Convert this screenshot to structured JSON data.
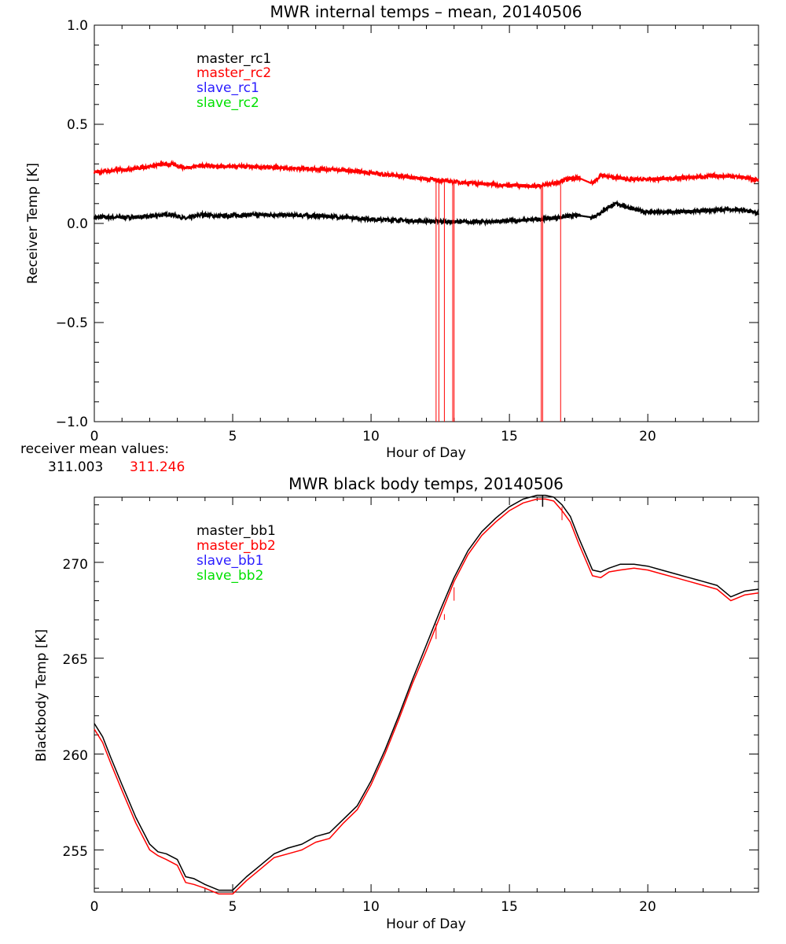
{
  "colors": {
    "black": "#000000",
    "red": "#ff0000",
    "blue": "#2a1cff",
    "green": "#00e000"
  },
  "chart_data": [
    {
      "type": "line",
      "title": "MWR internal temps – mean, 20140506",
      "xlabel": "Hour of Day",
      "ylabel": "Receiver Temp [K]",
      "xlim": [
        0,
        24
      ],
      "ylim": [
        -1.0,
        1.0
      ],
      "x_ticks": [
        0,
        5,
        10,
        15,
        20
      ],
      "x_tick_labels": [
        "0",
        "5",
        "10",
        "15",
        "20"
      ],
      "y_ticks": [
        -1.0,
        -0.5,
        0.0,
        0.5,
        1.0
      ],
      "y_tick_labels": [
        "−1.0",
        "−0.5",
        "0.0",
        "0.5",
        "1.0"
      ],
      "legend_position": "top-left",
      "series": [
        {
          "name": "master_rc1",
          "color": "#000000",
          "x": [
            0,
            0.5,
            1,
            1.5,
            2,
            2.5,
            2.7,
            3,
            3.3,
            3.6,
            3.9,
            4.2,
            4.5,
            5,
            5.5,
            6,
            6.5,
            7,
            7.5,
            8,
            8.5,
            9,
            9.5,
            10,
            10.5,
            11,
            11.5,
            12,
            12.5,
            13,
            13.5,
            14,
            14.5,
            15,
            15.5,
            16,
            16.5,
            17,
            17.5,
            18,
            18.3,
            18.6,
            18.9,
            19.2,
            19.5,
            20,
            20.5,
            21,
            21.5,
            22,
            22.5,
            23,
            23.5,
            24
          ],
          "y": [
            0.03,
            0.032,
            0.03,
            0.032,
            0.035,
            0.043,
            0.047,
            0.038,
            0.024,
            0.034,
            0.045,
            0.04,
            0.036,
            0.04,
            0.042,
            0.044,
            0.043,
            0.042,
            0.04,
            0.038,
            0.035,
            0.03,
            0.026,
            0.022,
            0.018,
            0.016,
            0.013,
            0.011,
            0.01,
            0.008,
            0.007,
            0.008,
            0.01,
            0.012,
            0.016,
            0.02,
            0.026,
            0.034,
            0.04,
            0.03,
            0.055,
            0.085,
            0.1,
            0.085,
            0.07,
            0.058,
            0.055,
            0.058,
            0.06,
            0.063,
            0.068,
            0.072,
            0.065,
            0.05
          ]
        },
        {
          "name": "master_rc2",
          "color": "#ff0000",
          "x": [
            0,
            0.5,
            1,
            1.5,
            2,
            2.5,
            2.7,
            3,
            3.3,
            3.6,
            3.9,
            4.2,
            4.5,
            5,
            5.5,
            6,
            6.5,
            7,
            7.5,
            8,
            8.5,
            9,
            9.5,
            10,
            10.5,
            11,
            11.5,
            12,
            12.5,
            13,
            13.5,
            14,
            14.5,
            15,
            15.5,
            16,
            16.5,
            17,
            17.5,
            18,
            18.3,
            18.6,
            18.9,
            19.2,
            19.5,
            20,
            20.5,
            21,
            21.5,
            22,
            22.5,
            23,
            23.5,
            24
          ],
          "y": [
            0.26,
            0.265,
            0.27,
            0.278,
            0.288,
            0.298,
            0.3,
            0.292,
            0.28,
            0.288,
            0.292,
            0.29,
            0.287,
            0.288,
            0.286,
            0.283,
            0.281,
            0.279,
            0.277,
            0.275,
            0.273,
            0.268,
            0.262,
            0.255,
            0.247,
            0.24,
            0.232,
            0.224,
            0.218,
            0.21,
            0.205,
            0.2,
            0.196,
            0.192,
            0.19,
            0.188,
            0.2,
            0.22,
            0.23,
            0.2,
            0.245,
            0.235,
            0.23,
            0.225,
            0.222,
            0.222,
            0.224,
            0.228,
            0.232,
            0.236,
            0.24,
            0.238,
            0.232,
            0.218
          ],
          "dropouts_x": [
            12.35,
            12.45,
            12.65,
            12.95,
            13.0,
            16.15,
            16.2,
            16.85
          ],
          "dropouts_to": -1.0
        },
        {
          "name": "slave_rc1",
          "color": "#2a1cff",
          "x": [],
          "y": []
        },
        {
          "name": "slave_rc2",
          "color": "#00e000",
          "x": [],
          "y": []
        }
      ],
      "annotation": {
        "label": "receiver mean values:",
        "values": [
          "311.003",
          "311.246"
        ],
        "value_colors": [
          "#000000",
          "#ff0000"
        ]
      }
    },
    {
      "type": "line",
      "title": "MWR black body temps, 20140506",
      "xlabel": "Hour of Day",
      "ylabel": "Blackbody Temp [K]",
      "xlim": [
        0,
        24
      ],
      "ylim": [
        252.8,
        273.4
      ],
      "x_ticks": [
        0,
        5,
        10,
        15,
        20
      ],
      "x_tick_labels": [
        "0",
        "5",
        "10",
        "15",
        "20"
      ],
      "y_ticks": [
        255,
        260,
        265,
        270
      ],
      "y_tick_labels": [
        "255",
        "260",
        "265",
        "270"
      ],
      "legend_position": "top-left",
      "series": [
        {
          "name": "master_bb1",
          "color": "#000000",
          "x": [
            0,
            0.3,
            0.6,
            1,
            1.5,
            2,
            2.3,
            2.6,
            3,
            3.3,
            3.6,
            4,
            4.5,
            5,
            5.5,
            6,
            6.5,
            7,
            7.5,
            8,
            8.5,
            9,
            9.5,
            10,
            10.5,
            11,
            11.5,
            12,
            12.5,
            13,
            13.5,
            14,
            14.5,
            15,
            15.5,
            16,
            16.3,
            16.6,
            16.9,
            17.2,
            17.5,
            18,
            18.3,
            18.6,
            19,
            19.5,
            20,
            20.5,
            21,
            21.5,
            22,
            22.5,
            23,
            23.5,
            24
          ],
          "y": [
            261.6,
            260.9,
            259.8,
            258.4,
            256.7,
            255.3,
            254.9,
            254.8,
            254.5,
            253.6,
            253.5,
            253.2,
            252.9,
            252.9,
            253.6,
            254.2,
            254.8,
            255.1,
            255.3,
            255.7,
            255.9,
            256.6,
            257.3,
            258.6,
            260.2,
            262.0,
            263.9,
            265.7,
            267.5,
            269.2,
            270.6,
            271.6,
            272.3,
            272.9,
            273.3,
            273.5,
            273.5,
            273.4,
            273.0,
            272.4,
            271.3,
            269.6,
            269.5,
            269.7,
            269.9,
            269.9,
            269.8,
            269.6,
            269.4,
            269.2,
            269.0,
            268.8,
            268.2,
            268.5,
            268.6
          ]
        },
        {
          "name": "master_bb2",
          "color": "#ff0000",
          "x": [
            0,
            0.3,
            0.6,
            1,
            1.5,
            2,
            2.3,
            2.6,
            3,
            3.3,
            3.6,
            4,
            4.5,
            5,
            5.5,
            6,
            6.5,
            7,
            7.5,
            8,
            8.5,
            9,
            9.5,
            10,
            10.5,
            11,
            11.5,
            12,
            12.5,
            13,
            13.5,
            14,
            14.5,
            15,
            15.5,
            16,
            16.3,
            16.6,
            16.9,
            17.2,
            17.5,
            18,
            18.3,
            18.6,
            19,
            19.5,
            20,
            20.5,
            21,
            21.5,
            22,
            22.5,
            23,
            23.5,
            24
          ],
          "y": [
            261.3,
            260.6,
            259.5,
            258.1,
            256.4,
            255.0,
            254.7,
            254.5,
            254.2,
            253.3,
            253.2,
            253.0,
            252.7,
            252.7,
            253.4,
            254.0,
            254.6,
            254.8,
            255.0,
            255.4,
            255.6,
            256.4,
            257.1,
            258.4,
            260.0,
            261.8,
            263.7,
            265.4,
            267.2,
            269.0,
            270.4,
            271.4,
            272.1,
            272.7,
            273.1,
            273.3,
            273.3,
            273.2,
            272.7,
            272.1,
            271.0,
            269.3,
            269.2,
            269.5,
            269.6,
            269.7,
            269.6,
            269.4,
            269.2,
            269.0,
            268.8,
            268.6,
            268.0,
            268.3,
            268.4
          ],
          "spikes": [
            {
              "x": 12.35,
              "from": 266.8,
              "to": 266.0
            },
            {
              "x": 12.65,
              "from": 267.3,
              "to": 267.0
            },
            {
              "x": 13.0,
              "from": 268.7,
              "to": 268.0
            },
            {
              "x": 16.9,
              "from": 272.9,
              "to": 272.2
            }
          ]
        },
        {
          "name": "slave_bb1",
          "color": "#2a1cff",
          "x": [],
          "y": []
        },
        {
          "name": "slave_bb2",
          "color": "#00e000",
          "x": [],
          "y": []
        }
      ],
      "black_marks": [
        {
          "x": 16.2,
          "from": 273.5,
          "to": 272.9
        }
      ]
    }
  ]
}
